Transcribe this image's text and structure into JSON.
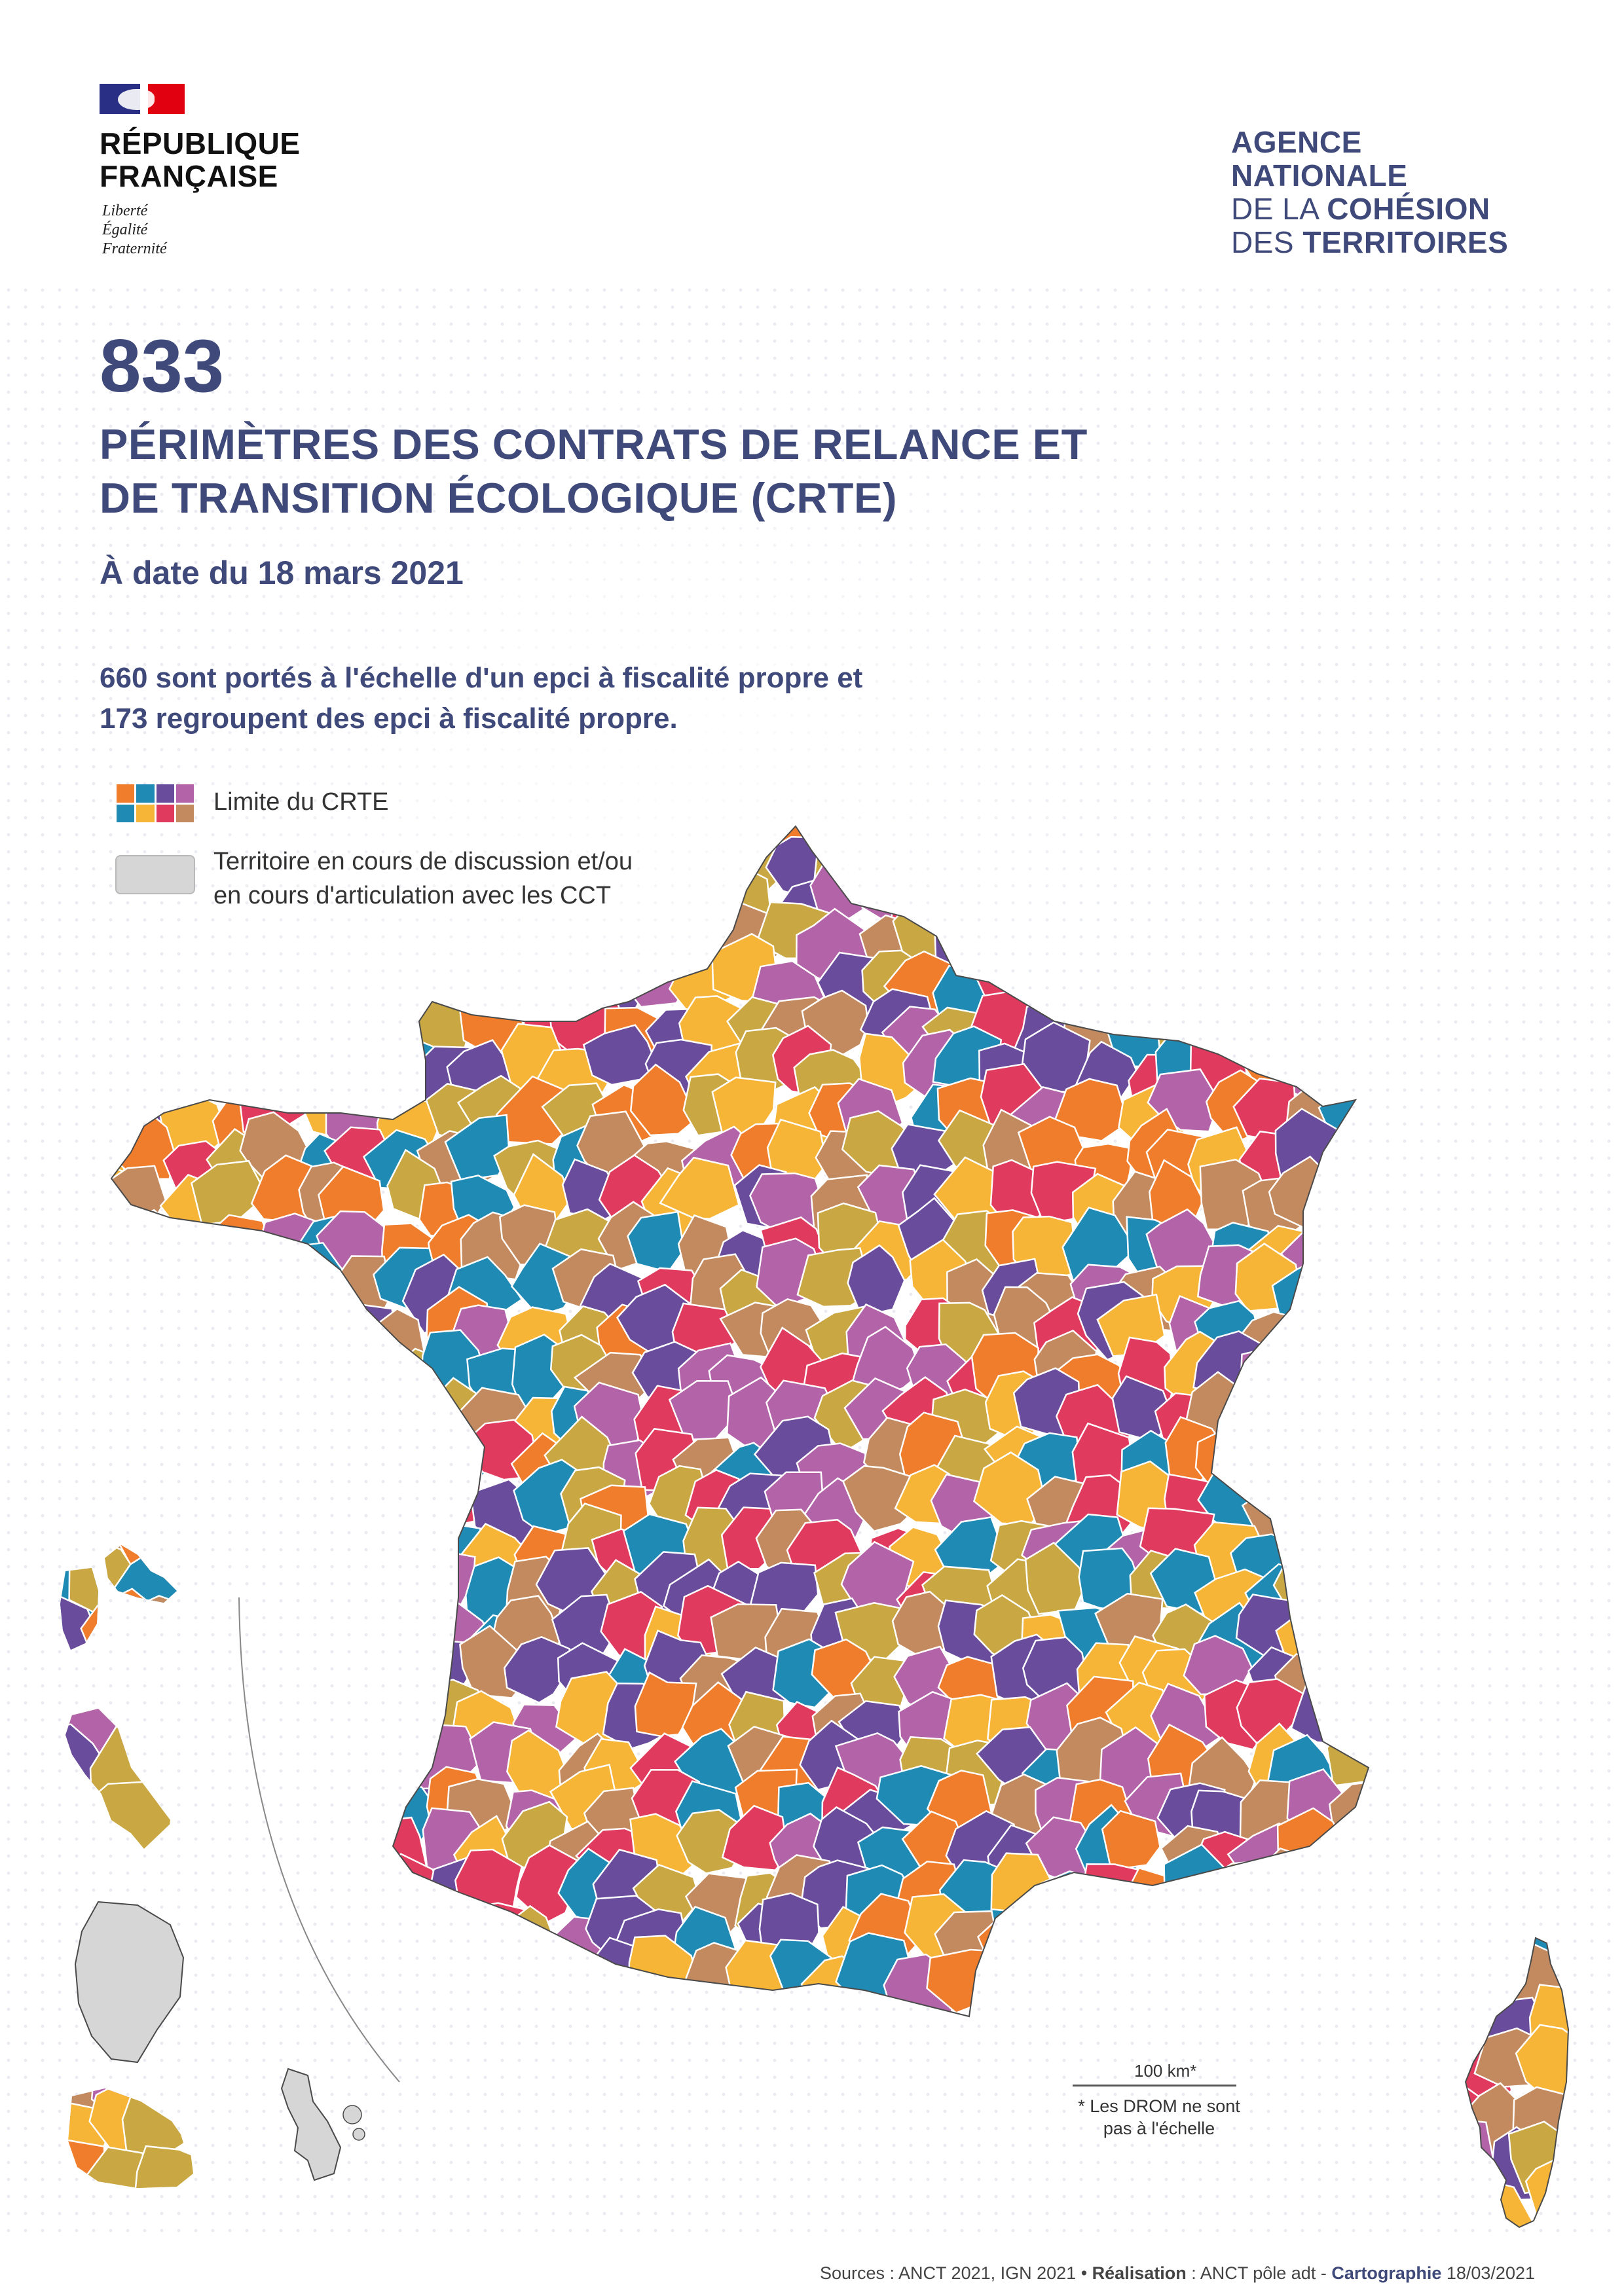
{
  "header": {
    "republique": [
      "RÉPUBLIQUE",
      "FRANÇAISE"
    ],
    "motto": [
      "Liberté",
      "Égalité",
      "Fraternité"
    ],
    "agency": [
      {
        "text": "AGENCE",
        "bold": true
      },
      {
        "text": "NATIONALE",
        "bold": true
      },
      {
        "text": "DE LA ",
        "bold": false,
        "text2": "COHÉSION"
      },
      {
        "text": "DES ",
        "bold": false,
        "text2": "TERRITOIRES"
      }
    ],
    "agency_lines": {
      "l1": "AGENCE",
      "l2": "NATIONALE",
      "l3a": "DE LA ",
      "l3b": "COHÉSION",
      "l4a": "DES ",
      "l4b": "TERRITOIRES"
    }
  },
  "headline": {
    "count": "833",
    "title_line1": "PÉRIMÈTRES DES CONTRATS DE RELANCE ET",
    "title_line2": "DE TRANSITION ÉCOLOGIQUE (CRTE)",
    "date": "À date du 18 mars 2021",
    "summary_line1": "660 sont portés à l'échelle d'un epci à fiscalité propre et",
    "summary_line2": "173 regroupent des epci à fiscalité propre."
  },
  "legend": {
    "crte_label": "Limite du CRTE",
    "crte_swatch_colors": [
      "#f07d2b",
      "#1f8bb5",
      "#6a4c9c",
      "#b363a8",
      "#1f8bb5",
      "#f6b537",
      "#e03a5e",
      "#c28a5e"
    ],
    "grey_label_line1": "Territoire en cours de discussion et/ou",
    "grey_label_line2": "en cours d'articulation avec les CCT",
    "grey_color": "#d6d6d6"
  },
  "map": {
    "palette": [
      "#f07d2b",
      "#1f8bb5",
      "#6a4c9c",
      "#b363a8",
      "#f6b537",
      "#e03a5e",
      "#c28a5e",
      "#c9a844"
    ],
    "territory_color_pending": "#d6d6d6",
    "scale_label": "100 km*",
    "drom_note_line1": "* Les DROM ne sont",
    "drom_note_line2": "pas à l'échelle"
  },
  "footer": {
    "sources_label": "Sources",
    "sources_value": " : ANCT 2021, IGN 2021 ",
    "realisation_label": "Réalisation",
    "realisation_value": " : ANCT pôle adt - ",
    "cartographie_label": "Cartographie",
    "cartographie_value": " 18/03/2021"
  },
  "colors": {
    "brand_navy": "#3f4a7a",
    "flag_blue": "#2a2f86",
    "flag_red": "#e1000f"
  }
}
